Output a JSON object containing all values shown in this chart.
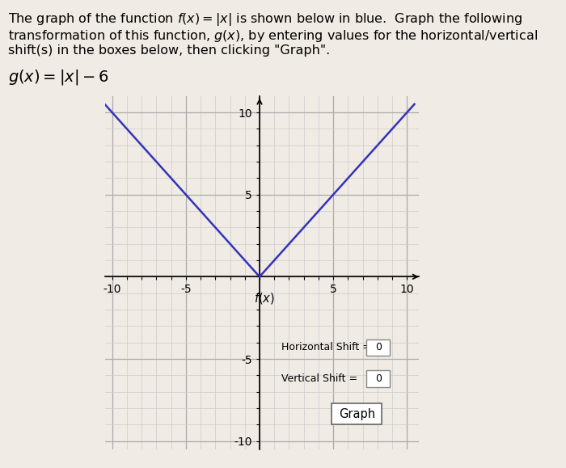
{
  "line1": "The graph of the function $f(x) = |x|$ is shown below in blue.  Graph the following",
  "line2": "transformation of this function, $g(x)$, by entering values for the horizontal/vertical",
  "line3": "shift(s) in the boxes below, then clicking \"Graph\".",
  "g_label": "$g(x) = |x| - 6$",
  "xlim": [
    -10.5,
    10.8
  ],
  "ylim": [
    -10.5,
    11.0
  ],
  "line_color": "#3333bb",
  "line_width": 1.8,
  "grid_minor_color": "#cccccc",
  "grid_minor_lw": 0.5,
  "grid_major_color": "#aaaaaa",
  "grid_major_lw": 0.9,
  "fig_bg_color": "#f0ebe4",
  "plot_bg_color": "#f0ebe4",
  "text_fontsize": 11.5,
  "g_fontsize": 14,
  "tick_fontsize": 9,
  "xlabel_text": "$f(x)$",
  "h_shift_label": "Horizontal Shift = ",
  "v_shift_label": "Vertical Shift = ",
  "h_shift_val": "0",
  "v_shift_val": "0",
  "graph_btn": "Graph"
}
